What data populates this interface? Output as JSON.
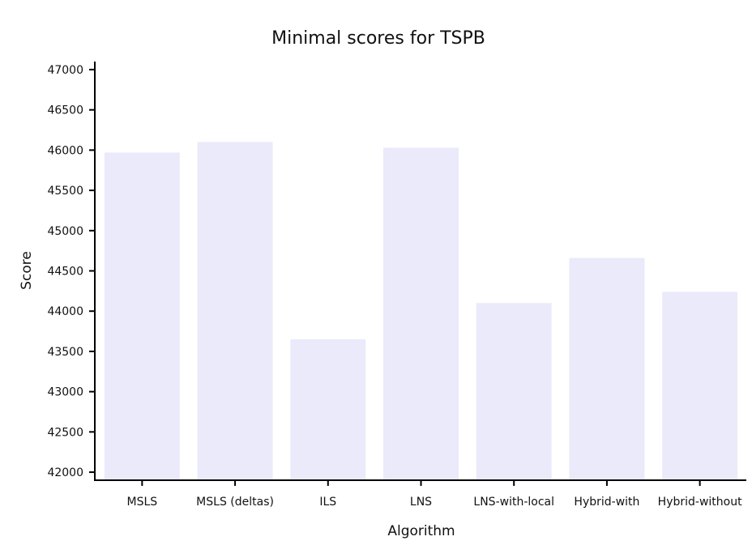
{
  "chart_data": {
    "type": "bar",
    "title": "Minimal scores for TSPB",
    "xlabel": "Algorithm",
    "ylabel": "Score",
    "categories": [
      "MSLS",
      "MSLS (deltas)",
      "ILS",
      "LNS",
      "LNS-with-local",
      "Hybrid-with",
      "Hybrid-without"
    ],
    "values": [
      45970,
      46100,
      43650,
      46030,
      44100,
      44660,
      44240
    ],
    "ylim": [
      41900,
      47100
    ],
    "yticks": [
      42000,
      42500,
      43000,
      43500,
      44000,
      44500,
      45000,
      45500,
      46000,
      46500,
      47000
    ],
    "grid": false,
    "bar_color": "#eaeafa"
  }
}
